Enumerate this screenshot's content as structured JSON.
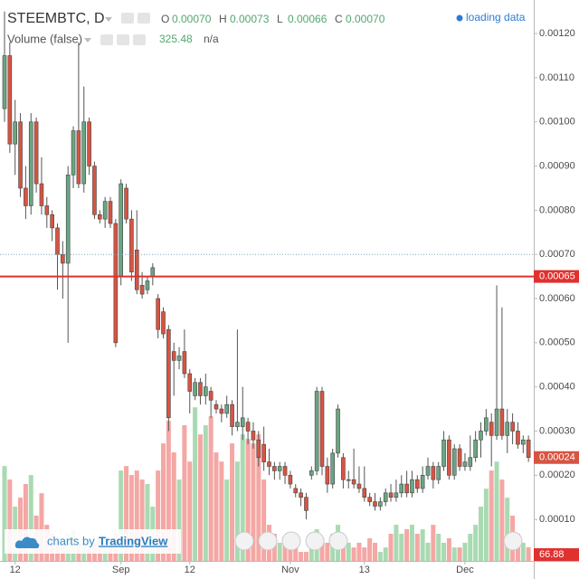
{
  "chart_data": {
    "type": "candlestick",
    "symbol": "STEEMBTC, D",
    "legend_ohlc": [
      {
        "label": "O",
        "value": "0.00070"
      },
      {
        "label": "H",
        "value": "0.00073"
      },
      {
        "label": "L",
        "value": "0.00066"
      },
      {
        "label": "C",
        "value": "0.00070"
      }
    ],
    "status": "loading data",
    "volume_title": "Volume (false)",
    "volume_readout": "325.48",
    "volume_readout2": "n/a",
    "branding": {
      "prefix": "charts by",
      "name": "TradingView"
    },
    "up_color": "#6ba583",
    "down_color": "#d75442",
    "volume_up_color": "#a9dab2",
    "volume_down_color": "#f4a7a4",
    "ylim": [
      6e-06,
      0.001276
    ],
    "yticks": [
      {
        "value": 0.0001,
        "label": "0.00010"
      },
      {
        "value": 0.0002,
        "label": "0.00020"
      },
      {
        "value": 0.0003,
        "label": "0.00030"
      },
      {
        "value": 0.0004,
        "label": "0.00040"
      },
      {
        "value": 0.0005,
        "label": "0.00050"
      },
      {
        "value": 0.0006,
        "label": "0.00060"
      },
      {
        "value": 0.0007,
        "label": "0.00070"
      },
      {
        "value": 0.0008,
        "label": "0.00080"
      },
      {
        "value": 0.0009,
        "label": "0.00090"
      },
      {
        "value": 0.001,
        "label": "0.00100"
      },
      {
        "value": 0.0011,
        "label": "0.00110"
      },
      {
        "value": 0.0012,
        "label": "0.00120"
      }
    ],
    "xticks": [
      {
        "value": 2,
        "label": "12"
      },
      {
        "value": 22,
        "label": "Sep"
      },
      {
        "value": 35,
        "label": "12"
      },
      {
        "value": 54,
        "label": "Nov"
      },
      {
        "value": 68,
        "label": "13"
      },
      {
        "value": 87,
        "label": "Dec"
      }
    ],
    "alert_line": 0.00065,
    "price_line": 0.0007,
    "volume_lim": [
      0,
      2750
    ],
    "open": [
      0.00103,
      0.00115,
      0.00095,
      0.001,
      0.00085,
      0.00081,
      0.001,
      0.00086,
      0.00081,
      0.00079,
      0.00076,
      0.0007,
      0.00068,
      0.00088,
      0.00098,
      0.00086,
      0.001,
      0.0009,
      0.00079,
      0.00078,
      0.00082,
      0.00077,
      0.00065,
      0.00085,
      0.00078,
      0.00071,
      0.00063,
      0.00062,
      0.00065,
      0.0006,
      0.00057,
      0.00053,
      0.00048,
      0.00046,
      0.00048,
      0.00043,
      0.00038,
      0.00041,
      0.00038,
      0.00039,
      0.00036,
      0.00035,
      0.00034,
      0.00036,
      0.00031,
      0.00031,
      0.00032,
      0.0003,
      0.00028,
      0.00027,
      0.00023,
      0.00022,
      0.00021,
      0.00022,
      0.0002,
      0.00017,
      0.00016,
      0.00015,
      0.0002,
      0.00021,
      0.00039,
      0.00022,
      0.00018,
      0.00025,
      0.00024,
      0.00019,
      0.00019,
      0.00018,
      0.00017,
      0.00015,
      0.00014,
      0.00013,
      0.00014,
      0.00016,
      0.00015,
      0.00016,
      0.00018,
      0.00016,
      0.00019,
      0.00017,
      0.0002,
      0.00022,
      0.00019,
      0.00022,
      0.00028,
      0.0002,
      0.00026,
      0.00022,
      0.00022,
      0.00024,
      0.00028,
      0.0003,
      0.00032,
      0.00029,
      0.00035,
      0.00029,
      0.00032,
      0.0003,
      0.00027,
      0.00028
    ],
    "high": [
      0.00125,
      0.00118,
      0.00105,
      0.00102,
      0.0009,
      0.00102,
      0.00101,
      0.00092,
      0.00083,
      0.0008,
      0.00077,
      0.00073,
      0.0009,
      0.00099,
      0.00118,
      0.00108,
      0.00101,
      0.00091,
      0.0008,
      0.00083,
      0.00083,
      0.00078,
      0.00087,
      0.00086,
      0.0008,
      0.0008,
      0.00066,
      0.00065,
      0.00068,
      0.00061,
      0.00058,
      0.00054,
      0.0005,
      0.00049,
      0.00053,
      0.00044,
      0.00042,
      0.00042,
      0.00043,
      0.0004,
      0.00037,
      0.00036,
      0.00038,
      0.00037,
      0.00053,
      0.0004,
      0.00033,
      0.00032,
      0.0003,
      0.00031,
      0.00026,
      0.00023,
      0.00023,
      0.00023,
      0.00021,
      0.00018,
      0.00017,
      0.00016,
      0.00022,
      0.0004,
      0.0004,
      0.00024,
      0.00026,
      0.00036,
      0.00025,
      0.00021,
      0.00026,
      0.00022,
      0.00022,
      0.00016,
      0.00016,
      0.00015,
      0.00017,
      0.00018,
      0.00019,
      0.0002,
      0.00021,
      0.00021,
      0.0002,
      0.00022,
      0.00024,
      0.00023,
      0.00023,
      0.0003,
      0.00029,
      0.00027,
      0.00027,
      0.00025,
      0.00029,
      0.0003,
      0.00032,
      0.00035,
      0.00034,
      0.00063,
      0.00058,
      0.00035,
      0.00034,
      0.00032,
      0.00029,
      0.00029
    ],
    "low": [
      0.001,
      0.00093,
      0.00088,
      0.00083,
      0.00078,
      0.00079,
      0.00084,
      0.00079,
      0.00076,
      0.00073,
      0.00062,
      0.0006,
      0.0005,
      0.00085,
      0.00085,
      0.00084,
      0.00088,
      0.00078,
      0.00077,
      0.00076,
      0.00076,
      0.00049,
      0.00063,
      0.00077,
      0.00064,
      0.00061,
      0.0006,
      0.00061,
      0.00063,
      0.00051,
      0.00051,
      0.0003,
      0.00038,
      0.00044,
      0.00042,
      0.00034,
      0.00037,
      0.00036,
      0.00036,
      0.00033,
      0.00034,
      0.00032,
      0.00033,
      0.00029,
      0.0003,
      0.00028,
      0.00027,
      0.00026,
      0.00022,
      0.00021,
      0.0002,
      0.00019,
      0.00019,
      0.00018,
      0.00017,
      0.00015,
      0.00013,
      0.0001,
      0.00019,
      0.0002,
      0.0002,
      0.00016,
      0.00017,
      0.00024,
      0.00017,
      0.00017,
      0.00017,
      0.00016,
      0.00014,
      0.00013,
      0.00012,
      0.00012,
      0.00013,
      0.00014,
      0.00014,
      0.00015,
      0.00015,
      0.00015,
      0.00016,
      0.00016,
      0.00019,
      0.00017,
      0.00018,
      0.00021,
      0.00019,
      0.00019,
      0.00021,
      0.00021,
      0.00021,
      0.00023,
      0.00024,
      0.00029,
      0.00022,
      0.00028,
      0.00028,
      0.00025,
      0.00027,
      0.00026,
      0.00025,
      0.00023
    ],
    "close": [
      0.00115,
      0.00095,
      0.001,
      0.00085,
      0.00081,
      0.001,
      0.00086,
      0.00081,
      0.00079,
      0.00076,
      0.0007,
      0.00068,
      0.00088,
      0.00098,
      0.00086,
      0.001,
      0.0009,
      0.00079,
      0.00078,
      0.00082,
      0.00077,
      0.0005,
      0.00086,
      0.00078,
      0.00066,
      0.00062,
      0.00061,
      0.00064,
      0.00067,
      0.00053,
      0.00052,
      0.00033,
      0.00046,
      0.00047,
      0.00043,
      0.00039,
      0.00041,
      0.00038,
      0.0004,
      0.00037,
      0.00035,
      0.00034,
      0.00036,
      0.00031,
      0.00032,
      0.00033,
      0.0003,
      0.00028,
      0.00024,
      0.00023,
      0.00022,
      0.00021,
      0.00022,
      0.0002,
      0.00018,
      0.00016,
      0.00015,
      0.00012,
      0.00021,
      0.00039,
      0.00022,
      0.00018,
      0.00025,
      0.00035,
      0.00019,
      0.00019,
      0.00018,
      0.00017,
      0.00015,
      0.00014,
      0.00013,
      0.00014,
      0.00016,
      0.00015,
      0.00016,
      0.00018,
      0.00016,
      0.00019,
      0.00017,
      0.0002,
      0.00022,
      0.00019,
      0.00022,
      0.00028,
      0.0002,
      0.00026,
      0.00022,
      0.00023,
      0.00024,
      0.00028,
      0.0003,
      0.00033,
      0.00029,
      0.00035,
      0.00029,
      0.00032,
      0.0003,
      0.00027,
      0.00028,
      0.00024
    ],
    "volume": [
      465,
      399,
      266,
      310,
      377,
      421,
      222,
      332,
      177,
      133,
      111,
      89,
      133,
      155,
      89,
      111,
      66,
      89,
      111,
      66,
      89,
      133,
      443,
      465,
      421,
      443,
      399,
      377,
      266,
      443,
      576,
      687,
      532,
      399,
      665,
      487,
      753,
      620,
      665,
      709,
      532,
      487,
      399,
      576,
      487,
      620,
      598,
      576,
      620,
      399,
      177,
      133,
      89,
      111,
      66,
      89,
      44,
      44,
      133,
      155,
      111,
      89,
      133,
      177,
      111,
      89,
      66,
      89,
      66,
      111,
      89,
      44,
      66,
      133,
      177,
      133,
      155,
      177,
      133,
      155,
      89,
      177,
      133,
      89,
      111,
      66,
      66,
      89,
      133,
      177,
      266,
      354,
      443,
      487,
      399,
      310,
      222,
      133,
      89,
      66.88
    ]
  }
}
